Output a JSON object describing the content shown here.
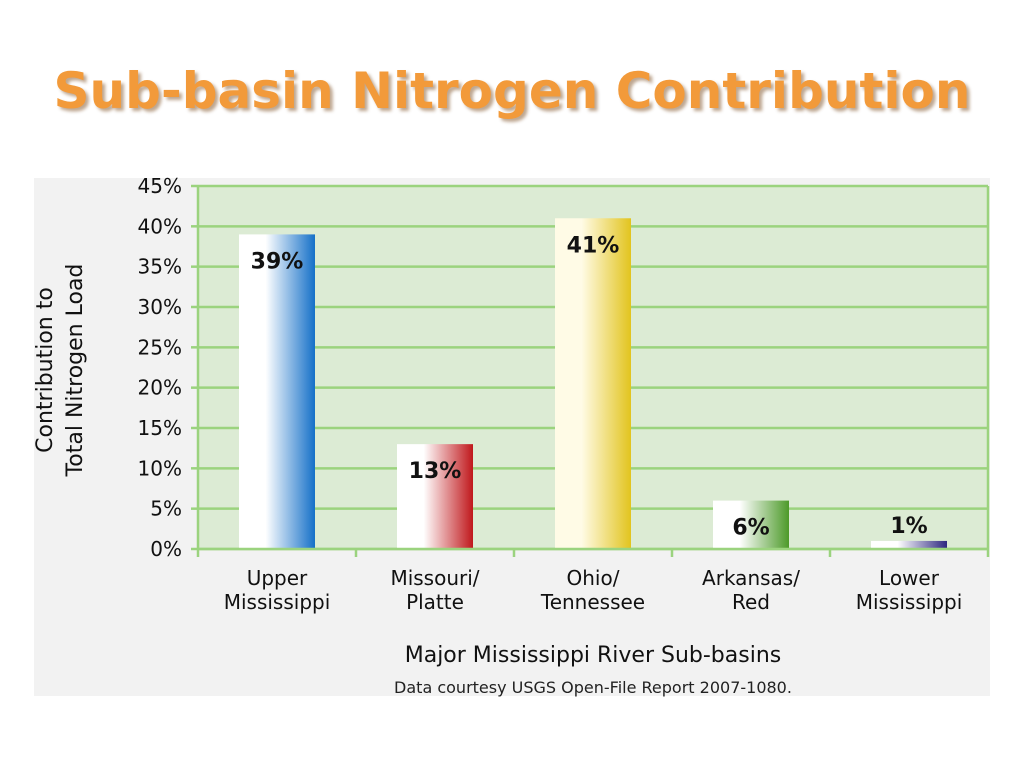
{
  "title": "Sub-basin Nitrogen Contribution",
  "chart_data": {
    "type": "bar",
    "categories": [
      [
        "Upper",
        "Mississippi"
      ],
      [
        "Missouri/",
        "Platte"
      ],
      [
        "Ohio/",
        "Tennessee"
      ],
      [
        "Arkansas/",
        "Red"
      ],
      [
        "Lower",
        "Mississippi"
      ]
    ],
    "values": [
      39,
      13,
      41,
      6,
      1
    ],
    "data_labels": [
      "39%",
      "13%",
      "41%",
      "6%",
      "1%"
    ],
    "bar_colors": [
      [
        "#ffffff",
        "#1570c8"
      ],
      [
        "#ffffff",
        "#c0181c"
      ],
      [
        "#fffbe6",
        "#e2c41e"
      ],
      [
        "#ffffff",
        "#4d9a2a"
      ],
      [
        "#ffffff",
        "#2e2780"
      ]
    ],
    "ylabel": [
      "Contribution to",
      "Total Nitrogen Load"
    ],
    "xlabel": "Major Mississippi River Sub-basins",
    "ylim": [
      0,
      45
    ],
    "yticks": [
      0,
      5,
      10,
      15,
      20,
      25,
      30,
      35,
      40,
      45
    ],
    "ytick_labels": [
      "0%",
      "5%",
      "10%",
      "15%",
      "20%",
      "25%",
      "30%",
      "35%",
      "40%",
      "45%"
    ],
    "grid": true,
    "plot_background": "#dcebd4",
    "grid_color": "#9bd37e"
  },
  "source_note": "Data courtesy USGS Open-File Report 2007-1080."
}
